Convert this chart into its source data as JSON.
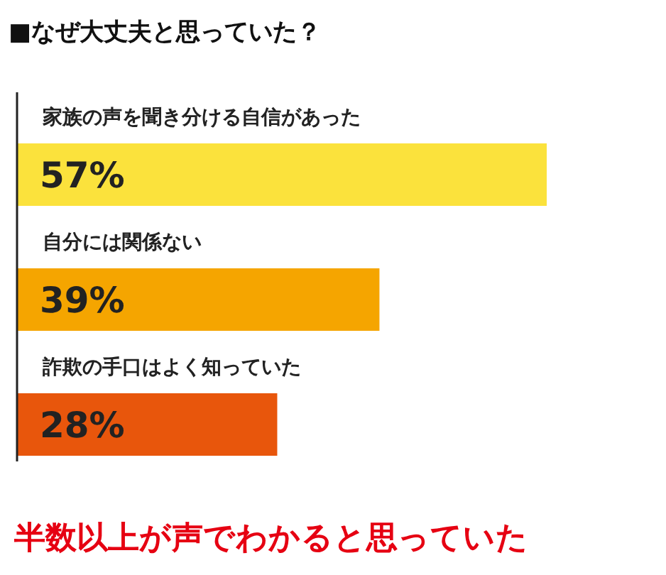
{
  "chart_data": {
    "type": "bar",
    "orientation": "horizontal",
    "title": "■なぜ大丈夫と思っていた？",
    "categories": [
      "家族の声を聞き分ける自信があった",
      "自分には関係ない",
      "詐欺の手口はよく知っていた"
    ],
    "values": [
      57,
      39,
      28
    ],
    "colors": [
      "#fbe23c",
      "#f5a500",
      "#e8560c"
    ],
    "value_labels": [
      "57%",
      "39%",
      "28%"
    ],
    "annotations": [
      "半数以上が声でわかると思っていた"
    ]
  }
}
